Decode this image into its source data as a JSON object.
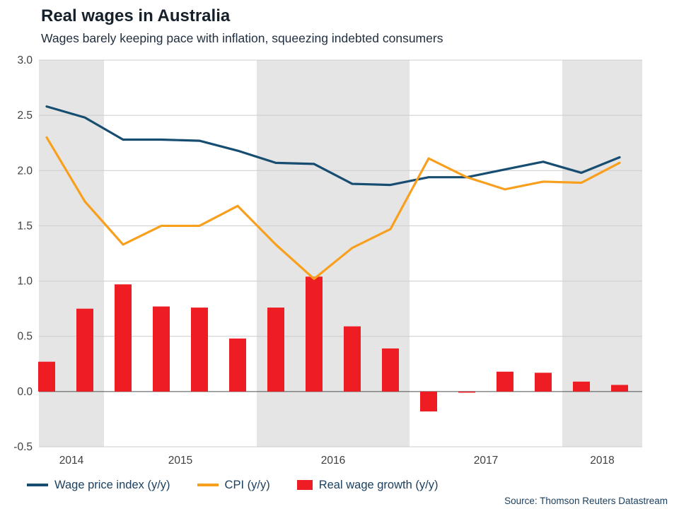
{
  "header": {
    "title": "Real wages in Australia",
    "subtitle": "Wages barely keeping pace with inflation, squeezing indebted consumers"
  },
  "footer": {
    "source": "Source: Thomson Reuters Datastream"
  },
  "chart_data": {
    "type": "combo",
    "title": "Real wages in Australia",
    "subtitle": "Wages barely keeping pace with inflation, squeezing indebted consumers",
    "quarters": [
      "2014-Q3",
      "2014-Q4",
      "2015-Q1",
      "2015-Q2",
      "2015-Q3",
      "2015-Q4",
      "2016-Q1",
      "2016-Q2",
      "2016-Q3",
      "2016-Q4",
      "2017-Q1",
      "2017-Q2",
      "2017-Q3",
      "2017-Q4",
      "2018-Q1",
      "2018-Q2"
    ],
    "year_labels": [
      "2014",
      "2015",
      "2016",
      "2017",
      "2018"
    ],
    "series": [
      {
        "name": "Wage price index (y/y)",
        "type": "line",
        "color": "#174d71",
        "values": [
          2.58,
          2.48,
          2.28,
          2.28,
          2.27,
          2.18,
          2.07,
          2.06,
          1.88,
          1.87,
          1.94,
          1.94,
          2.01,
          2.08,
          1.98,
          2.12
        ]
      },
      {
        "name": "CPI (y/y)",
        "type": "line",
        "color": "#f8a01e",
        "values": [
          2.3,
          1.72,
          1.33,
          1.5,
          1.5,
          1.68,
          1.33,
          1.02,
          1.3,
          1.47,
          2.11,
          1.94,
          1.83,
          1.9,
          1.89,
          2.07
        ]
      },
      {
        "name": "Real wage growth (y/y)",
        "type": "bar",
        "color": "#ee1c23",
        "values": [
          0.27,
          0.75,
          0.97,
          0.77,
          0.76,
          0.48,
          0.76,
          1.04,
          0.59,
          0.39,
          -0.18,
          -0.01,
          0.18,
          0.17,
          0.09,
          0.06
        ]
      }
    ],
    "ylim": [
      -0.5,
      3.0
    ],
    "yticks": [
      "3.0",
      "2.5",
      "2.0",
      "1.5",
      "1.0",
      "0.5",
      "0.0",
      "-0.5"
    ],
    "grid": true,
    "legend_position": "bottom",
    "shaded_years": [
      "2014",
      "2016",
      "2018"
    ],
    "colors": {
      "band": "#e5e5e5",
      "grid": "#cccccc",
      "zero_line": "#4d4d4d",
      "axis_text": "#404040",
      "legend_text": "#1c4060",
      "title_text": "#15202b"
    }
  }
}
